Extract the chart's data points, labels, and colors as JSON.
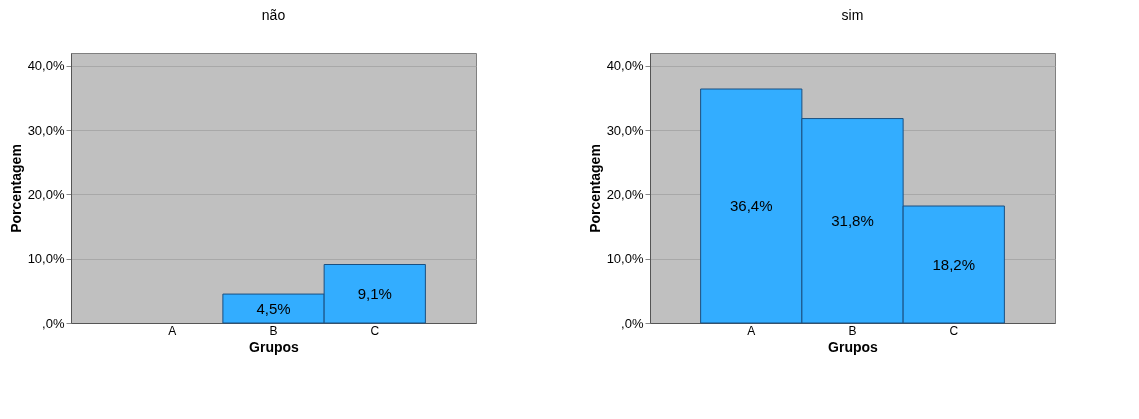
{
  "chart_data": [
    {
      "type": "bar",
      "title": "não",
      "xlabel": "Grupos",
      "ylabel": "Porcentagem",
      "categories": [
        "A",
        "B",
        "C"
      ],
      "values": [
        null,
        4.5,
        9.1
      ],
      "value_labels": [
        null,
        "4,5%",
        "9,1%"
      ],
      "color": "#33adff",
      "ylim": [
        0,
        42
      ],
      "yticks": [
        {
          "value": 0,
          "label": ",0%"
        },
        {
          "value": 10,
          "label": "10,0%"
        },
        {
          "value": 20,
          "label": "20,0%"
        },
        {
          "value": 30,
          "label": "30,0%"
        },
        {
          "value": 40,
          "label": "40,0%"
        }
      ],
      "grid": "y"
    },
    {
      "type": "bar",
      "title": "sim",
      "xlabel": "Grupos",
      "ylabel": "Porcentagem",
      "categories": [
        "A",
        "B",
        "C"
      ],
      "values": [
        36.4,
        31.8,
        18.2
      ],
      "value_labels": [
        "36,4%",
        "31,8%",
        "18,2%"
      ],
      "color": "#33adff",
      "ylim": [
        0,
        42
      ],
      "yticks": [
        {
          "value": 0,
          "label": ",0%"
        },
        {
          "value": 10,
          "label": "10,0%"
        },
        {
          "value": 20,
          "label": "20,0%"
        },
        {
          "value": 30,
          "label": "30,0%"
        },
        {
          "value": 40,
          "label": "40,0%"
        }
      ],
      "grid": "y"
    }
  ]
}
